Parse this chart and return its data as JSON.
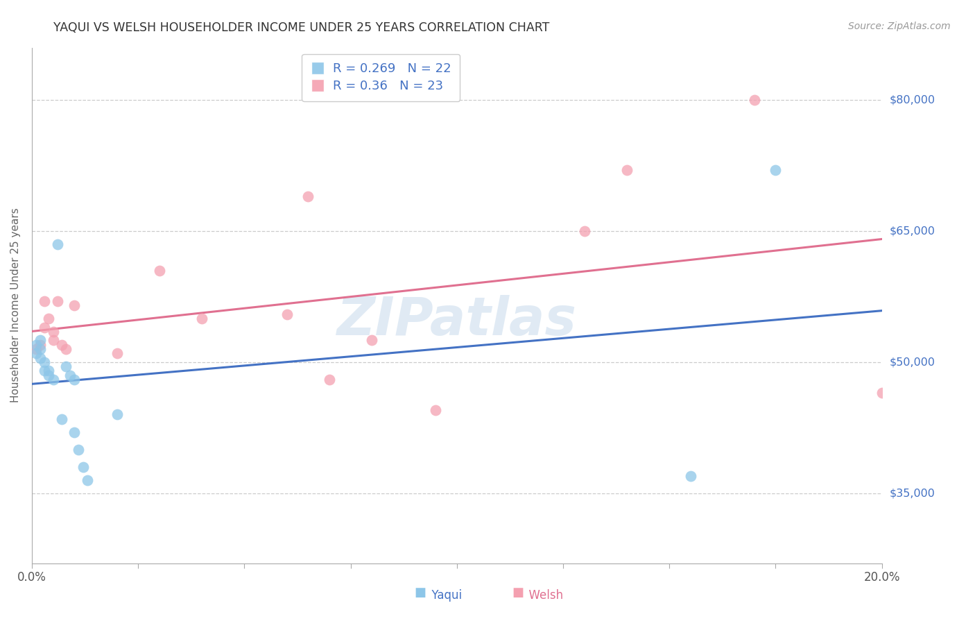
{
  "title": "YAQUI VS WELSH HOUSEHOLDER INCOME UNDER 25 YEARS CORRELATION CHART",
  "source": "Source: ZipAtlas.com",
  "ylabel": "Householder Income Under 25 years",
  "yaxis_labels": [
    "$35,000",
    "$50,000",
    "$65,000",
    "$80,000"
  ],
  "yaxis_values": [
    35000,
    50000,
    65000,
    80000
  ],
  "ylim": [
    27000,
    86000
  ],
  "xlim": [
    0.0,
    0.2
  ],
  "watermark_text": "ZIPatlas",
  "yaqui_color": "#8dc6e8",
  "welsh_color": "#f4a0b0",
  "yaqui_line_color": "#4472c4",
  "welsh_line_color": "#e07090",
  "yaqui_R": 0.269,
  "yaqui_N": 22,
  "welsh_R": 0.36,
  "welsh_N": 23,
  "yaqui_x": [
    0.001,
    0.001,
    0.002,
    0.002,
    0.002,
    0.003,
    0.003,
    0.004,
    0.004,
    0.005,
    0.006,
    0.007,
    0.008,
    0.009,
    0.01,
    0.01,
    0.011,
    0.012,
    0.013,
    0.02,
    0.155,
    0.175
  ],
  "yaqui_y": [
    52000,
    51000,
    51500,
    50500,
    52500,
    49000,
    50000,
    49000,
    48500,
    48000,
    63500,
    43500,
    49500,
    48500,
    48000,
    42000,
    40000,
    38000,
    36500,
    44000,
    37000,
    72000
  ],
  "welsh_x": [
    0.001,
    0.002,
    0.003,
    0.003,
    0.004,
    0.005,
    0.005,
    0.006,
    0.007,
    0.008,
    0.01,
    0.02,
    0.03,
    0.04,
    0.06,
    0.065,
    0.07,
    0.08,
    0.095,
    0.13,
    0.14,
    0.17,
    0.2
  ],
  "welsh_y": [
    51500,
    52000,
    57000,
    54000,
    55000,
    52500,
    53500,
    57000,
    52000,
    51500,
    56500,
    51000,
    60500,
    55000,
    55500,
    69000,
    48000,
    52500,
    44500,
    65000,
    72000,
    80000,
    46500
  ]
}
